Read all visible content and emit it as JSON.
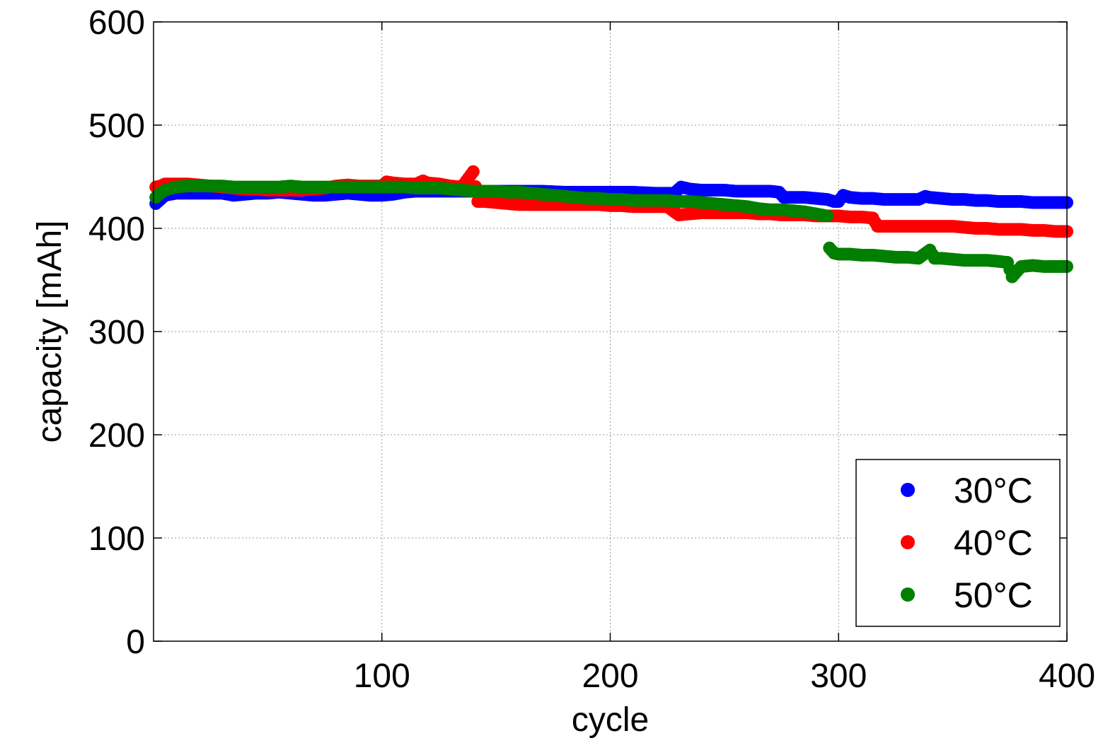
{
  "chart_data": {
    "type": "scatter",
    "title": "",
    "xlabel": "cycle",
    "ylabel": "capacity [mAh]",
    "xlim": [
      0,
      400
    ],
    "ylim": [
      0,
      600
    ],
    "xticks": [
      100,
      200,
      300,
      400
    ],
    "yticks": [
      0,
      100,
      200,
      300,
      400,
      500,
      600
    ],
    "grid": true,
    "legend_position": "bottom-right",
    "series": [
      {
        "name": "30°C",
        "color": "#0000ff",
        "points": [
          [
            1,
            424
          ],
          [
            3,
            428
          ],
          [
            5,
            432
          ],
          [
            10,
            434
          ],
          [
            15,
            434
          ],
          [
            20,
            434
          ],
          [
            25,
            434
          ],
          [
            30,
            434
          ],
          [
            35,
            432
          ],
          [
            40,
            433
          ],
          [
            45,
            434
          ],
          [
            50,
            434
          ],
          [
            55,
            435
          ],
          [
            60,
            434
          ],
          [
            65,
            433
          ],
          [
            70,
            432
          ],
          [
            75,
            432
          ],
          [
            80,
            433
          ],
          [
            85,
            434
          ],
          [
            90,
            433
          ],
          [
            95,
            432
          ],
          [
            100,
            432
          ],
          [
            105,
            433
          ],
          [
            110,
            435
          ],
          [
            115,
            436
          ],
          [
            120,
            436
          ],
          [
            125,
            436
          ],
          [
            130,
            436
          ],
          [
            135,
            436
          ],
          [
            140,
            436
          ],
          [
            145,
            436
          ],
          [
            150,
            436
          ],
          [
            160,
            436
          ],
          [
            170,
            436
          ],
          [
            180,
            435
          ],
          [
            190,
            435
          ],
          [
            200,
            435
          ],
          [
            210,
            435
          ],
          [
            220,
            434
          ],
          [
            228,
            434
          ],
          [
            231,
            440
          ],
          [
            235,
            438
          ],
          [
            240,
            437
          ],
          [
            245,
            437
          ],
          [
            250,
            437
          ],
          [
            255,
            436
          ],
          [
            260,
            436
          ],
          [
            265,
            436
          ],
          [
            270,
            436
          ],
          [
            274,
            435
          ],
          [
            276,
            430
          ],
          [
            280,
            430
          ],
          [
            285,
            430
          ],
          [
            290,
            429
          ],
          [
            295,
            428
          ],
          [
            298,
            426
          ],
          [
            300,
            426
          ],
          [
            302,
            432
          ],
          [
            305,
            430
          ],
          [
            310,
            429
          ],
          [
            315,
            429
          ],
          [
            320,
            428
          ],
          [
            325,
            428
          ],
          [
            330,
            428
          ],
          [
            335,
            428
          ],
          [
            338,
            431
          ],
          [
            340,
            430
          ],
          [
            345,
            429
          ],
          [
            350,
            428
          ],
          [
            355,
            428
          ],
          [
            360,
            427
          ],
          [
            365,
            427
          ],
          [
            370,
            426
          ],
          [
            375,
            426
          ],
          [
            380,
            426
          ],
          [
            385,
            425
          ],
          [
            390,
            425
          ],
          [
            395,
            425
          ],
          [
            400,
            425
          ]
        ]
      },
      {
        "name": "40°C",
        "color": "#ff0000",
        "points": [
          [
            1,
            440
          ],
          [
            3,
            441
          ],
          [
            5,
            443
          ],
          [
            10,
            443
          ],
          [
            15,
            443
          ],
          [
            20,
            442
          ],
          [
            25,
            441
          ],
          [
            30,
            440
          ],
          [
            35,
            439
          ],
          [
            40,
            438
          ],
          [
            45,
            438
          ],
          [
            50,
            437
          ],
          [
            55,
            437
          ],
          [
            60,
            437
          ],
          [
            65,
            437
          ],
          [
            70,
            438
          ],
          [
            75,
            439
          ],
          [
            80,
            441
          ],
          [
            85,
            442
          ],
          [
            90,
            441
          ],
          [
            95,
            441
          ],
          [
            100,
            441
          ],
          [
            102,
            445
          ],
          [
            105,
            444
          ],
          [
            110,
            443
          ],
          [
            115,
            443
          ],
          [
            118,
            446
          ],
          [
            120,
            444
          ],
          [
            125,
            443
          ],
          [
            130,
            441
          ],
          [
            135,
            440
          ],
          [
            140,
            455
          ],
          [
            142,
            426
          ],
          [
            145,
            426
          ],
          [
            150,
            425
          ],
          [
            155,
            424
          ],
          [
            160,
            423
          ],
          [
            165,
            423
          ],
          [
            170,
            423
          ],
          [
            175,
            423
          ],
          [
            180,
            423
          ],
          [
            185,
            423
          ],
          [
            190,
            423
          ],
          [
            195,
            423
          ],
          [
            200,
            422
          ],
          [
            205,
            422
          ],
          [
            210,
            421
          ],
          [
            215,
            421
          ],
          [
            220,
            421
          ],
          [
            225,
            421
          ],
          [
            230,
            413
          ],
          [
            235,
            414
          ],
          [
            240,
            415
          ],
          [
            245,
            415
          ],
          [
            250,
            415
          ],
          [
            255,
            415
          ],
          [
            260,
            415
          ],
          [
            265,
            414
          ],
          [
            270,
            414
          ],
          [
            275,
            413
          ],
          [
            280,
            413
          ],
          [
            285,
            413
          ],
          [
            290,
            412
          ],
          [
            295,
            412
          ],
          [
            300,
            412
          ],
          [
            305,
            411
          ],
          [
            310,
            411
          ],
          [
            315,
            410
          ],
          [
            317,
            402
          ],
          [
            320,
            402
          ],
          [
            325,
            402
          ],
          [
            330,
            402
          ],
          [
            335,
            402
          ],
          [
            340,
            402
          ],
          [
            345,
            402
          ],
          [
            350,
            402
          ],
          [
            355,
            401
          ],
          [
            360,
            400
          ],
          [
            365,
            400
          ],
          [
            370,
            399
          ],
          [
            375,
            399
          ],
          [
            380,
            399
          ],
          [
            385,
            398
          ],
          [
            390,
            398
          ],
          [
            395,
            397
          ],
          [
            400,
            397
          ]
        ]
      },
      {
        "name": "50°C",
        "color": "#007f00",
        "points": [
          [
            1,
            430
          ],
          [
            3,
            434
          ],
          [
            5,
            437
          ],
          [
            10,
            440
          ],
          [
            15,
            441
          ],
          [
            20,
            441
          ],
          [
            25,
            441
          ],
          [
            30,
            441
          ],
          [
            35,
            440
          ],
          [
            40,
            440
          ],
          [
            45,
            440
          ],
          [
            50,
            440
          ],
          [
            55,
            440
          ],
          [
            60,
            441
          ],
          [
            65,
            440
          ],
          [
            70,
            440
          ],
          [
            75,
            440
          ],
          [
            80,
            440
          ],
          [
            85,
            440
          ],
          [
            90,
            440
          ],
          [
            95,
            440
          ],
          [
            100,
            440
          ],
          [
            105,
            440
          ],
          [
            110,
            440
          ],
          [
            115,
            439
          ],
          [
            120,
            439
          ],
          [
            125,
            439
          ],
          [
            130,
            438
          ],
          [
            135,
            437
          ],
          [
            140,
            436
          ],
          [
            145,
            436
          ],
          [
            150,
            436
          ],
          [
            155,
            435
          ],
          [
            160,
            435
          ],
          [
            165,
            434
          ],
          [
            170,
            433
          ],
          [
            175,
            432
          ],
          [
            180,
            431
          ],
          [
            185,
            430
          ],
          [
            190,
            429
          ],
          [
            195,
            429
          ],
          [
            200,
            428
          ],
          [
            205,
            428
          ],
          [
            210,
            427
          ],
          [
            215,
            427
          ],
          [
            220,
            427
          ],
          [
            225,
            427
          ],
          [
            230,
            426
          ],
          [
            235,
            426
          ],
          [
            240,
            425
          ],
          [
            245,
            424
          ],
          [
            250,
            423
          ],
          [
            255,
            422
          ],
          [
            260,
            421
          ],
          [
            265,
            419
          ],
          [
            270,
            418
          ],
          [
            275,
            418
          ],
          [
            280,
            417
          ],
          [
            285,
            416
          ],
          [
            290,
            414
          ],
          [
            295,
            412
          ],
          [
            296,
            381
          ],
          [
            298,
            376
          ],
          [
            300,
            375
          ],
          [
            305,
            375
          ],
          [
            310,
            374
          ],
          [
            315,
            374
          ],
          [
            320,
            373
          ],
          [
            325,
            372
          ],
          [
            330,
            372
          ],
          [
            335,
            371
          ],
          [
            340,
            379
          ],
          [
            342,
            371
          ],
          [
            345,
            371
          ],
          [
            350,
            370
          ],
          [
            355,
            369
          ],
          [
            360,
            369
          ],
          [
            365,
            369
          ],
          [
            370,
            368
          ],
          [
            374,
            367
          ],
          [
            376,
            353
          ],
          [
            380,
            363
          ],
          [
            385,
            364
          ],
          [
            390,
            363
          ],
          [
            395,
            363
          ],
          [
            400,
            363
          ]
        ]
      }
    ]
  }
}
